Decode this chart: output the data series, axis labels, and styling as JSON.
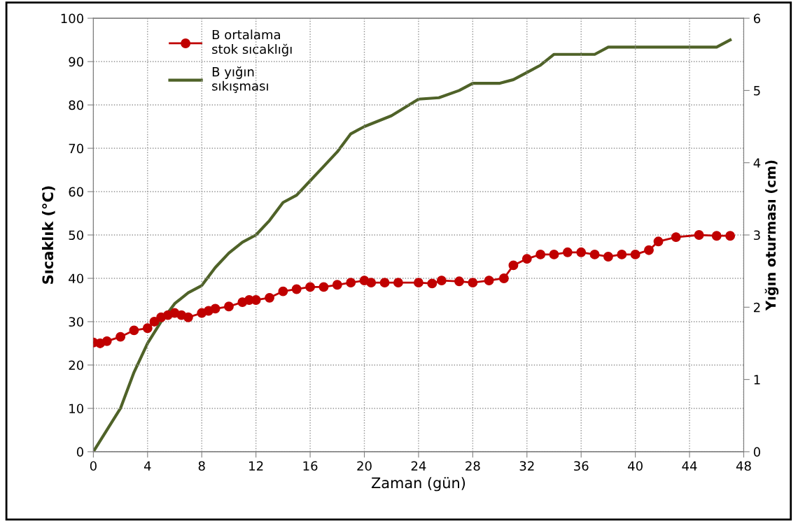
{
  "chart_data": {
    "type": "line",
    "xlabel": "Zaman (gün)",
    "ylabel": "Sıcaklık (°C)",
    "y2label": "Yığın oturması (cm)",
    "xlim": [
      0,
      48
    ],
    "xticks": [
      0,
      4,
      8,
      12,
      16,
      20,
      24,
      28,
      32,
      36,
      40,
      44,
      48
    ],
    "ylim": [
      0,
      100
    ],
    "yticks": [
      0,
      10,
      20,
      30,
      40,
      50,
      60,
      70,
      80,
      90,
      100
    ],
    "y2lim": [
      0,
      6
    ],
    "y2ticks": [
      0,
      1,
      2,
      3,
      4,
      5,
      6
    ],
    "grid": true,
    "legend": "top left",
    "series": [
      {
        "name": "B ortalama\nstok sıcaklığı",
        "color": "#c00000",
        "marker": "circle",
        "x": [
          0,
          0.5,
          1,
          2,
          3,
          4,
          4.5,
          5,
          5.5,
          6,
          6.5,
          7,
          8,
          8.5,
          9,
          10,
          11,
          11.5,
          12,
          13,
          14,
          15,
          16,
          17,
          18,
          19,
          20,
          20.5,
          21.5,
          22.5,
          24,
          25,
          25.7,
          27,
          28,
          29.2,
          30.3,
          31,
          32,
          33,
          34,
          35,
          36,
          37,
          38,
          39,
          40,
          41,
          41.7,
          43,
          44.7,
          46,
          47
        ],
        "values": [
          25.2,
          25,
          25.5,
          26.5,
          28,
          28.5,
          30,
          31,
          31.5,
          32,
          31.5,
          31,
          32,
          32.5,
          33,
          33.5,
          34.5,
          35,
          35,
          35.5,
          37,
          37.5,
          38,
          38,
          38.5,
          39,
          39.5,
          39,
          39,
          39,
          39,
          38.8,
          39.5,
          39.3,
          39,
          39.5,
          40,
          43,
          44.5,
          45.5,
          45.5,
          46,
          46,
          45.5,
          45,
          45.5,
          45.5,
          46.5,
          48.5,
          49.5,
          50,
          49.8,
          49.8
        ]
      },
      {
        "name": "B yığın\nsıkışması",
        "color": "#4f6228",
        "marker": "none",
        "axis": "y2",
        "x": [
          0,
          1,
          2,
          3,
          4,
          5,
          6,
          7,
          8,
          9,
          10,
          11,
          12,
          13,
          14,
          15,
          16,
          17,
          18,
          19,
          20,
          22,
          24,
          25.5,
          27,
          28,
          30,
          31,
          32,
          33,
          34,
          36,
          37,
          38,
          40,
          46,
          47
        ],
        "values": [
          0,
          0.3,
          0.6,
          1.1,
          1.5,
          1.8,
          2.05,
          2.2,
          2.3,
          2.55,
          2.75,
          2.9,
          3.0,
          3.2,
          3.45,
          3.55,
          3.75,
          3.95,
          4.15,
          4.4,
          4.5,
          4.65,
          4.88,
          4.9,
          5.0,
          5.1,
          5.1,
          5.15,
          5.25,
          5.35,
          5.5,
          5.5,
          5.5,
          5.6,
          5.6,
          5.6,
          5.7
        ]
      }
    ]
  }
}
